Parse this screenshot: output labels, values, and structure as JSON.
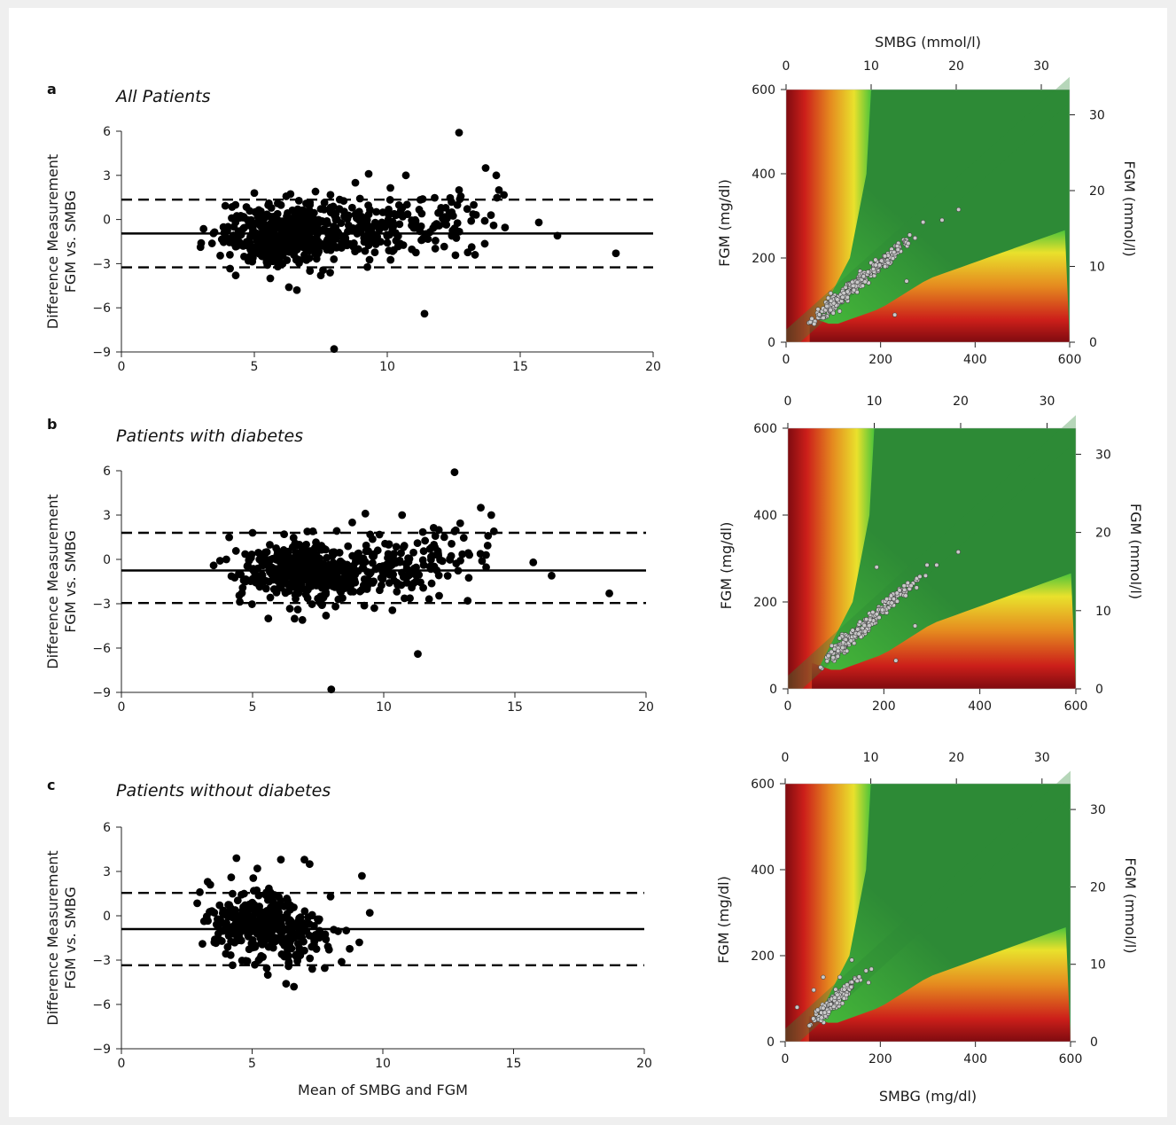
{
  "figure": {
    "background": "#ffffff",
    "page_background": "#efefef"
  },
  "chart_data": [
    {
      "id": "bland_a",
      "type": "scatter",
      "panel_letter": "a",
      "title": "All Patients",
      "xlabel": "",
      "ylabel": "Difference Measurement",
      "ylabel2": "FGM vs. SMBG",
      "xlim": [
        0,
        20
      ],
      "ylim": [
        -9,
        6
      ],
      "xticks": [
        0,
        5,
        10,
        15,
        20
      ],
      "xtick_labels": [
        "0",
        "5",
        "10",
        "15",
        "20"
      ],
      "yticks": [
        6,
        3,
        0,
        -3,
        -6,
        -9
      ],
      "ytick_labels": [
        "6",
        "3",
        "0",
        "−3",
        "−6",
        "−9"
      ],
      "mean_line": -0.95,
      "limits_of_agreement": [
        1.35,
        -3.25
      ],
      "point_color": "#000000",
      "outliers": [
        [
          12.7,
          5.9
        ],
        [
          13.7,
          3.5
        ],
        [
          14.1,
          3.0
        ],
        [
          14.2,
          2.0
        ],
        [
          12.7,
          2.0
        ],
        [
          9.3,
          3.1
        ],
        [
          10.7,
          3.0
        ],
        [
          8.8,
          2.5
        ],
        [
          7.3,
          1.9
        ],
        [
          5.0,
          1.8
        ],
        [
          15.7,
          -0.2
        ],
        [
          16.4,
          -1.1
        ],
        [
          18.6,
          -2.3
        ],
        [
          13.3,
          -2.4
        ],
        [
          11.4,
          -6.4
        ],
        [
          8.0,
          -8.8
        ],
        [
          4.3,
          -3.8
        ],
        [
          5.6,
          -4.0
        ],
        [
          6.3,
          -4.6
        ],
        [
          6.6,
          -4.8
        ],
        [
          7.5,
          -3.8
        ],
        [
          3.0,
          -1.6
        ],
        [
          13.9,
          0.3
        ],
        [
          14.0,
          -0.4
        ]
      ],
      "clusters": [
        {
          "cx": 6.0,
          "cy": -1.0,
          "sx": 1.1,
          "sy": 1.0,
          "n": 430
        },
        {
          "cx": 9.5,
          "cy": -0.6,
          "sx": 1.4,
          "sy": 1.0,
          "n": 170
        },
        {
          "cx": 12.2,
          "cy": 0.3,
          "sx": 0.9,
          "sy": 1.0,
          "n": 40
        }
      ]
    },
    {
      "id": "bland_b",
      "type": "scatter",
      "panel_letter": "b",
      "title": "Patients with diabetes",
      "xlabel": "",
      "ylabel": "Difference Measurement",
      "ylabel2": "FGM vs. SMBG",
      "xlim": [
        0,
        20
      ],
      "ylim": [
        -9,
        6
      ],
      "xticks": [
        0,
        5,
        10,
        15,
        20
      ],
      "xtick_labels": [
        "0",
        "5",
        "10",
        "15",
        "20"
      ],
      "yticks": [
        6,
        3,
        0,
        -3,
        -6,
        -9
      ],
      "ytick_labels": [
        "6",
        "3",
        "0",
        "−3",
        "−6",
        "−9"
      ],
      "mean_line": -0.75,
      "limits_of_agreement": [
        1.8,
        -2.95
      ],
      "point_color": "#000000",
      "outliers": [
        [
          12.7,
          5.9
        ],
        [
          13.7,
          3.5
        ],
        [
          14.1,
          3.0
        ],
        [
          14.2,
          1.9
        ],
        [
          12.7,
          1.9
        ],
        [
          9.3,
          3.1
        ],
        [
          10.7,
          3.0
        ],
        [
          8.8,
          2.5
        ],
        [
          7.3,
          1.9
        ],
        [
          5.0,
          1.8
        ],
        [
          15.7,
          -0.2
        ],
        [
          16.4,
          -1.1
        ],
        [
          18.6,
          -2.3
        ],
        [
          13.2,
          -2.8
        ],
        [
          11.3,
          -6.4
        ],
        [
          8.0,
          -8.8
        ],
        [
          5.6,
          -4.0
        ],
        [
          6.9,
          -4.1
        ],
        [
          7.8,
          -3.8
        ],
        [
          4.0,
          0.0
        ],
        [
          13.9,
          0.3
        ]
      ],
      "clusters": [
        {
          "cx": 6.8,
          "cy": -0.8,
          "sx": 1.1,
          "sy": 0.95,
          "n": 360
        },
        {
          "cx": 9.8,
          "cy": -0.6,
          "sx": 1.3,
          "sy": 0.95,
          "n": 160
        },
        {
          "cx": 12.3,
          "cy": 0.3,
          "sx": 0.9,
          "sy": 1.0,
          "n": 40
        }
      ]
    },
    {
      "id": "bland_c",
      "type": "scatter",
      "panel_letter": "c",
      "title": "Patients without diabetes",
      "xlabel": "Mean of SMBG and FGM",
      "ylabel": "Difference Measurement",
      "ylabel2": "FGM vs. SMBG",
      "xlim": [
        0,
        20
      ],
      "ylim": [
        -9,
        6
      ],
      "xticks": [
        0,
        5,
        10,
        15,
        20
      ],
      "xtick_labels": [
        "0",
        "5",
        "10",
        "15",
        "20"
      ],
      "yticks": [
        6,
        3,
        0,
        -3,
        -6,
        -9
      ],
      "ytick_labels": [
        "6",
        "3",
        "0",
        "−3",
        "−6",
        "−9"
      ],
      "mean_line": -0.9,
      "limits_of_agreement": [
        1.55,
        -3.35
      ],
      "point_color": "#000000",
      "outliers": [
        [
          4.4,
          3.9
        ],
        [
          6.1,
          3.8
        ],
        [
          7.0,
          3.8
        ],
        [
          7.2,
          3.5
        ],
        [
          9.2,
          2.7
        ],
        [
          9.5,
          0.2
        ],
        [
          3.3,
          2.3
        ],
        [
          3.4,
          2.1
        ],
        [
          3.0,
          1.6
        ],
        [
          8.0,
          1.3
        ],
        [
          8.6,
          -1.0
        ],
        [
          9.1,
          -1.8
        ],
        [
          5.6,
          -4.0
        ],
        [
          6.3,
          -4.6
        ],
        [
          6.6,
          -4.8
        ],
        [
          7.3,
          -3.6
        ],
        [
          3.1,
          -1.9
        ],
        [
          4.2,
          2.6
        ],
        [
          5.2,
          3.2
        ]
      ],
      "clusters": [
        {
          "cx": 5.1,
          "cy": -0.6,
          "sx": 0.9,
          "sy": 1.15,
          "n": 260
        },
        {
          "cx": 6.8,
          "cy": -1.3,
          "sx": 0.8,
          "sy": 1.0,
          "n": 90
        }
      ]
    },
    {
      "id": "error_grid_a",
      "type": "heatmap",
      "xlabel": "",
      "ylabel": "FGM (mg/dl)",
      "top_label": "SMBG (mmol/l)",
      "right_label": "FGM (mmol/l)",
      "xlim": [
        0,
        600
      ],
      "ylim": [
        0,
        600
      ],
      "xticks": [
        0,
        200,
        400,
        600
      ],
      "xtick_labels": [
        "0",
        "200",
        "400",
        "600"
      ],
      "yticks": [
        0,
        200,
        400,
        600
      ],
      "ytick_labels": [
        "0",
        "200",
        "400",
        "600"
      ],
      "top_ticks": [
        0,
        10,
        20,
        30
      ],
      "top_tick_labels": [
        "0",
        "10",
        "20",
        "30"
      ],
      "right_ticks": [
        0,
        10,
        20,
        30
      ],
      "right_tick_labels": [
        "0",
        "10",
        "20",
        "30"
      ],
      "mmol_factor": 18,
      "colors": {
        "green": "#2d8a36",
        "bright_green": "#4cc43a",
        "yellow": "#e9e12c",
        "orange": "#e58a1f",
        "red": "#cc1f1a",
        "dark_red": "#7f0b10"
      },
      "points_color": "#c8c8c8",
      "outliers": [
        [
          365,
          315
        ],
        [
          330,
          290
        ],
        [
          290,
          285
        ],
        [
          255,
          145
        ],
        [
          230,
          65
        ],
        [
          130,
          120
        ]
      ],
      "clusters": [
        {
          "cx": 95,
          "cy": 85,
          "sx": 18,
          "sy": 18,
          "n": 90,
          "t": 0
        },
        {
          "cx": 150,
          "cy": 140,
          "sx": 30,
          "sy": 16,
          "n": 130,
          "t": 1
        },
        {
          "cx": 215,
          "cy": 200,
          "sx": 25,
          "sy": 14,
          "n": 70,
          "t": 1
        }
      ]
    },
    {
      "id": "error_grid_b",
      "type": "heatmap",
      "xlabel": "",
      "ylabel": "FGM (mg/dl)",
      "top_label": "",
      "right_label": "FGM (mmol/l)",
      "xlim": [
        0,
        600
      ],
      "ylim": [
        0,
        600
      ],
      "xticks": [
        0,
        200,
        400,
        600
      ],
      "xtick_labels": [
        "0",
        "200",
        "400",
        "600"
      ],
      "yticks": [
        0,
        200,
        400,
        600
      ],
      "ytick_labels": [
        "0",
        "200",
        "400",
        "600"
      ],
      "top_ticks": [
        0,
        10,
        20,
        30
      ],
      "top_tick_labels": [
        "0",
        "10",
        "20",
        "30"
      ],
      "right_ticks": [
        0,
        10,
        20,
        30
      ],
      "right_tick_labels": [
        "0",
        "10",
        "20",
        "30"
      ],
      "mmol_factor": 18,
      "colors": {
        "green": "#2d8a36",
        "bright_green": "#4cc43a",
        "yellow": "#e9e12c",
        "orange": "#e58a1f",
        "red": "#cc1f1a",
        "dark_red": "#7f0b10"
      },
      "points_color": "#c8c8c8",
      "outliers": [
        [
          355,
          315
        ],
        [
          310,
          285
        ],
        [
          290,
          285
        ],
        [
          265,
          145
        ],
        [
          225,
          65
        ],
        [
          185,
          280
        ]
      ],
      "clusters": [
        {
          "cx": 110,
          "cy": 95,
          "sx": 18,
          "sy": 16,
          "n": 80,
          "t": 0
        },
        {
          "cx": 165,
          "cy": 150,
          "sx": 28,
          "sy": 16,
          "n": 120,
          "t": 1
        },
        {
          "cx": 225,
          "cy": 210,
          "sx": 22,
          "sy": 14,
          "n": 60,
          "t": 1
        }
      ]
    },
    {
      "id": "error_grid_c",
      "type": "heatmap",
      "xlabel": "SMBG (mg/dl)",
      "ylabel": "FGM (mg/dl)",
      "top_label": "",
      "right_label": "FGM (mmol/l)",
      "xlim": [
        0,
        600
      ],
      "ylim": [
        0,
        600
      ],
      "xticks": [
        0,
        200,
        400,
        600
      ],
      "xtick_labels": [
        "0",
        "200",
        "400",
        "600"
      ],
      "yticks": [
        0,
        200,
        400,
        600
      ],
      "ytick_labels": [
        "0",
        "200",
        "400",
        "600"
      ],
      "top_ticks": [
        0,
        10,
        20,
        30
      ],
      "top_tick_labels": [
        "0",
        "10",
        "20",
        "30"
      ],
      "right_ticks": [
        0,
        10,
        20,
        30
      ],
      "right_tick_labels": [
        "0",
        "10",
        "20",
        "30"
      ],
      "mmol_factor": 18,
      "colors": {
        "green": "#2d8a36",
        "bright_green": "#4cc43a",
        "yellow": "#e9e12c",
        "orange": "#e58a1f",
        "red": "#cc1f1a",
        "dark_red": "#7f0b10"
      },
      "points_color": "#c8c8c8",
      "outliers": [
        [
          140,
          190
        ],
        [
          60,
          120
        ],
        [
          25,
          80
        ],
        [
          170,
          165
        ],
        [
          115,
          150
        ],
        [
          80,
          150
        ]
      ],
      "clusters": [
        {
          "cx": 90,
          "cy": 80,
          "sx": 15,
          "sy": 14,
          "n": 100,
          "t": 0
        },
        {
          "cx": 125,
          "cy": 115,
          "sx": 18,
          "sy": 15,
          "n": 60,
          "t": 1
        }
      ]
    }
  ]
}
